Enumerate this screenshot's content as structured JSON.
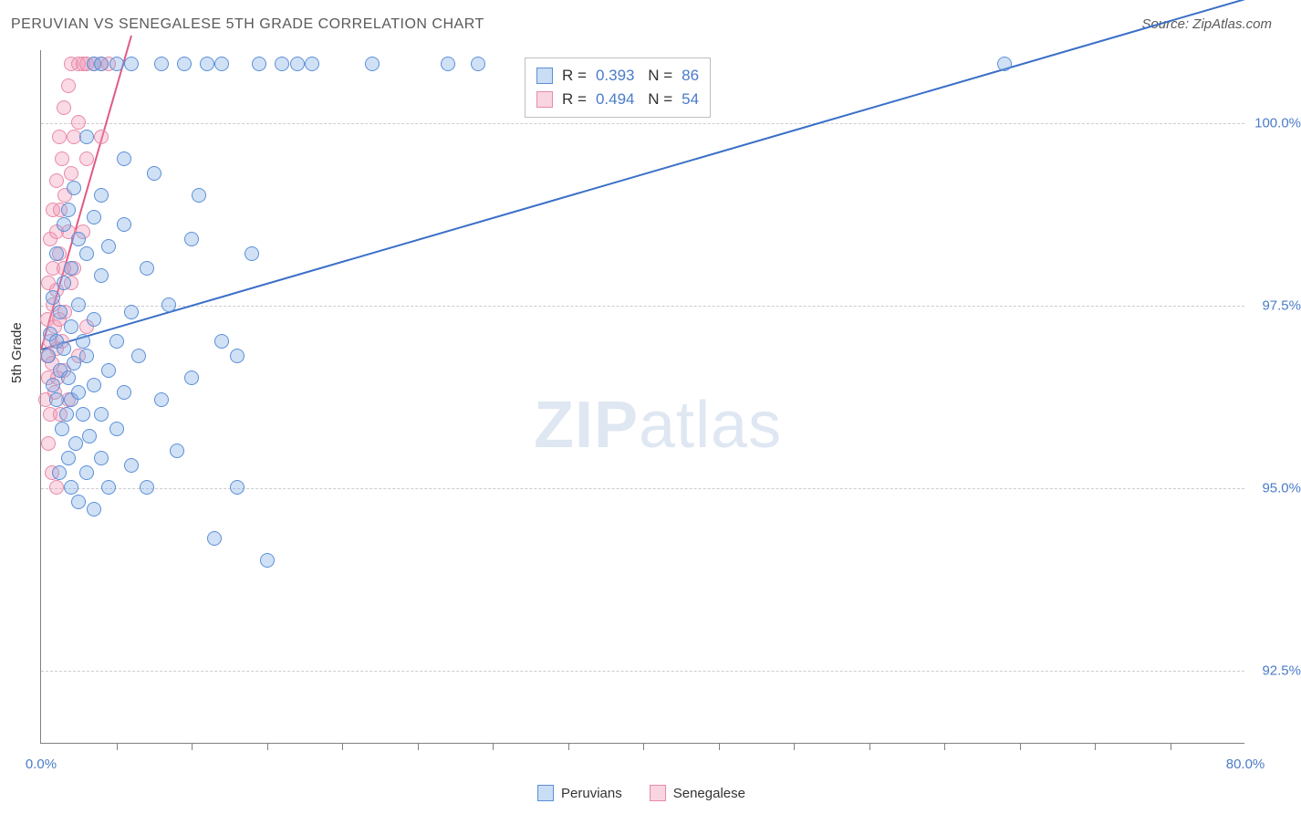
{
  "header": {
    "title": "PERUVIAN VS SENEGALESE 5TH GRADE CORRELATION CHART",
    "source": "Source: ZipAtlas.com"
  },
  "chart": {
    "type": "scatter",
    "ylabel": "5th Grade",
    "background_color": "#ffffff",
    "grid_color": "#cccccc",
    "axis_color": "#808080",
    "tick_label_color": "#4a7bc8",
    "marker_radius": 8,
    "marker_opacity": 0.35,
    "xlim": [
      0,
      80
    ],
    "ylim": [
      91.5,
      101.0
    ],
    "xtick_labels": {
      "0": "0.0%",
      "80": "80.0%"
    },
    "xticks_minor": [
      5,
      10,
      15,
      20,
      25,
      30,
      35,
      40,
      45,
      50,
      55,
      60,
      65,
      70,
      75
    ],
    "yticks": [
      {
        "v": 92.5,
        "label": "92.5%"
      },
      {
        "v": 95.0,
        "label": "95.0%"
      },
      {
        "v": 97.5,
        "label": "97.5%"
      },
      {
        "v": 100.0,
        "label": "100.0%"
      }
    ],
    "series": [
      {
        "name": "Peruvians",
        "color_fill": "rgba(120,170,230,0.35)",
        "color_stroke": "#5b8fd6",
        "trend_color": "#3a6fc7",
        "R": "0.393",
        "N": "86",
        "trend": {
          "x1": 0.0,
          "y1": 96.9,
          "x2": 80.0,
          "y2": 101.7
        },
        "points": [
          [
            0.5,
            96.8
          ],
          [
            0.6,
            97.1
          ],
          [
            0.8,
            96.4
          ],
          [
            0.8,
            97.6
          ],
          [
            1.0,
            96.2
          ],
          [
            1.0,
            97.0
          ],
          [
            1.0,
            98.2
          ],
          [
            1.2,
            95.2
          ],
          [
            1.3,
            96.6
          ],
          [
            1.3,
            97.4
          ],
          [
            1.4,
            95.8
          ],
          [
            1.5,
            96.9
          ],
          [
            1.5,
            97.8
          ],
          [
            1.5,
            98.6
          ],
          [
            1.7,
            96.0
          ],
          [
            1.8,
            95.4
          ],
          [
            1.8,
            96.5
          ],
          [
            1.8,
            98.8
          ],
          [
            2.0,
            95.0
          ],
          [
            2.0,
            96.2
          ],
          [
            2.0,
            97.2
          ],
          [
            2.0,
            98.0
          ],
          [
            2.2,
            96.7
          ],
          [
            2.2,
            99.1
          ],
          [
            2.3,
            95.6
          ],
          [
            2.5,
            94.8
          ],
          [
            2.5,
            96.3
          ],
          [
            2.5,
            97.5
          ],
          [
            2.5,
            98.4
          ],
          [
            2.8,
            96.0
          ],
          [
            2.8,
            97.0
          ],
          [
            3.0,
            95.2
          ],
          [
            3.0,
            96.8
          ],
          [
            3.0,
            98.2
          ],
          [
            3.0,
            99.8
          ],
          [
            3.2,
            95.7
          ],
          [
            3.5,
            94.7
          ],
          [
            3.5,
            96.4
          ],
          [
            3.5,
            97.3
          ],
          [
            3.5,
            98.7
          ],
          [
            3.5,
            100.8
          ],
          [
            4.0,
            95.4
          ],
          [
            4.0,
            96.0
          ],
          [
            4.0,
            97.9
          ],
          [
            4.0,
            99.0
          ],
          [
            4.0,
            100.8
          ],
          [
            4.5,
            95.0
          ],
          [
            4.5,
            96.6
          ],
          [
            4.5,
            98.3
          ],
          [
            5.0,
            95.8
          ],
          [
            5.0,
            97.0
          ],
          [
            5.0,
            100.8
          ],
          [
            5.5,
            96.3
          ],
          [
            5.5,
            98.6
          ],
          [
            5.5,
            99.5
          ],
          [
            6.0,
            95.3
          ],
          [
            6.0,
            97.4
          ],
          [
            6.0,
            100.8
          ],
          [
            6.5,
            96.8
          ],
          [
            7.0,
            95.0
          ],
          [
            7.0,
            98.0
          ],
          [
            7.5,
            99.3
          ],
          [
            8.0,
            96.2
          ],
          [
            8.0,
            100.8
          ],
          [
            8.5,
            97.5
          ],
          [
            9.0,
            95.5
          ],
          [
            9.5,
            100.8
          ],
          [
            10.0,
            96.5
          ],
          [
            10.0,
            98.4
          ],
          [
            10.5,
            99.0
          ],
          [
            11.0,
            100.8
          ],
          [
            11.5,
            94.3
          ],
          [
            12.0,
            97.0
          ],
          [
            12.0,
            100.8
          ],
          [
            13.0,
            95.0
          ],
          [
            13.0,
            96.8
          ],
          [
            14.0,
            98.2
          ],
          [
            14.5,
            100.8
          ],
          [
            15.0,
            94.0
          ],
          [
            16.0,
            100.8
          ],
          [
            17.0,
            100.8
          ],
          [
            18.0,
            100.8
          ],
          [
            22.0,
            100.8
          ],
          [
            27.0,
            100.8
          ],
          [
            29.0,
            100.8
          ],
          [
            64.0,
            100.8
          ]
        ]
      },
      {
        "name": "Senegalese",
        "color_fill": "rgba(240,150,180,0.35)",
        "color_stroke": "#e88aa8",
        "trend_color": "#e05a85",
        "R": "0.494",
        "N": "54",
        "trend": {
          "x1": 0.0,
          "y1": 96.9,
          "x2": 6.0,
          "y2": 101.2
        },
        "points": [
          [
            0.3,
            96.2
          ],
          [
            0.4,
            96.8
          ],
          [
            0.4,
            97.3
          ],
          [
            0.5,
            95.6
          ],
          [
            0.5,
            96.5
          ],
          [
            0.5,
            97.8
          ],
          [
            0.6,
            96.0
          ],
          [
            0.6,
            97.0
          ],
          [
            0.6,
            98.4
          ],
          [
            0.7,
            95.2
          ],
          [
            0.7,
            96.7
          ],
          [
            0.8,
            97.5
          ],
          [
            0.8,
            98.0
          ],
          [
            0.8,
            98.8
          ],
          [
            0.9,
            96.3
          ],
          [
            0.9,
            97.2
          ],
          [
            1.0,
            95.0
          ],
          [
            1.0,
            96.9
          ],
          [
            1.0,
            97.7
          ],
          [
            1.0,
            98.5
          ],
          [
            1.0,
            99.2
          ],
          [
            1.1,
            96.5
          ],
          [
            1.2,
            97.3
          ],
          [
            1.2,
            98.2
          ],
          [
            1.2,
            99.8
          ],
          [
            1.3,
            96.0
          ],
          [
            1.3,
            98.8
          ],
          [
            1.4,
            97.0
          ],
          [
            1.4,
            99.5
          ],
          [
            1.5,
            96.6
          ],
          [
            1.5,
            98.0
          ],
          [
            1.5,
            100.2
          ],
          [
            1.6,
            97.4
          ],
          [
            1.6,
            99.0
          ],
          [
            1.8,
            96.2
          ],
          [
            1.8,
            98.5
          ],
          [
            1.8,
            100.5
          ],
          [
            2.0,
            97.8
          ],
          [
            2.0,
            99.3
          ],
          [
            2.0,
            100.8
          ],
          [
            2.2,
            98.0
          ],
          [
            2.2,
            99.8
          ],
          [
            2.5,
            96.8
          ],
          [
            2.5,
            100.0
          ],
          [
            2.5,
            100.8
          ],
          [
            2.8,
            98.5
          ],
          [
            2.8,
            100.8
          ],
          [
            3.0,
            97.2
          ],
          [
            3.0,
            99.5
          ],
          [
            3.0,
            100.8
          ],
          [
            3.5,
            100.8
          ],
          [
            4.0,
            99.8
          ],
          [
            4.0,
            100.8
          ],
          [
            4.5,
            100.8
          ]
        ]
      }
    ],
    "legend": {
      "items": [
        "Peruvians",
        "Senegalese"
      ]
    },
    "watermark": {
      "bold": "ZIP",
      "rest": "atlas"
    }
  }
}
